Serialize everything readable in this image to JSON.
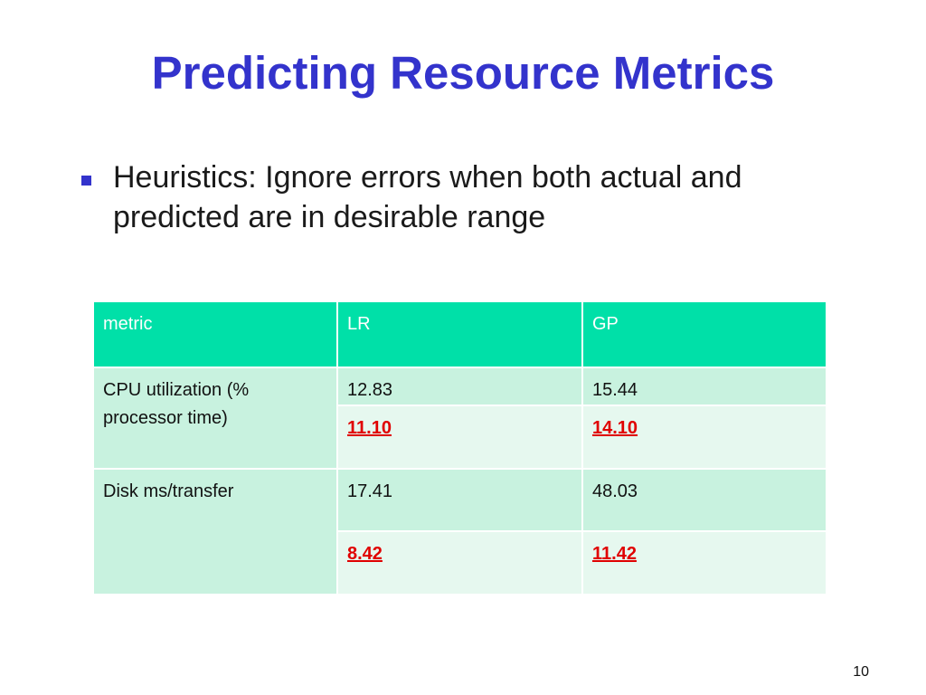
{
  "slide": {
    "title": "Predicting Resource Metrics",
    "bullet": "Heuristics:  Ignore errors when both actual and predicted are in desirable range",
    "page_number": "10",
    "colors": {
      "title": "#3333cc",
      "bullet_marker": "#3333cc",
      "table_header": "#00e0a8",
      "row_dark": "#c8f2df",
      "row_light": "#e6f8ef",
      "highlight": "#e00000"
    }
  },
  "table": {
    "headers": [
      "metric",
      "LR",
      "GP"
    ],
    "rows": [
      {
        "metric": "CPU utilization (% processor time)",
        "values": [
          {
            "lr": "12.83",
            "gp": "15.44",
            "highlight": false
          },
          {
            "lr": "11.10",
            "gp": "14.10",
            "highlight": true
          }
        ]
      },
      {
        "metric": "Disk ms/transfer",
        "values": [
          {
            "lr": "17.41",
            "gp": "48.03",
            "highlight": false
          },
          {
            "lr": "8.42",
            "gp": "11.42",
            "highlight": true
          }
        ]
      }
    ]
  }
}
